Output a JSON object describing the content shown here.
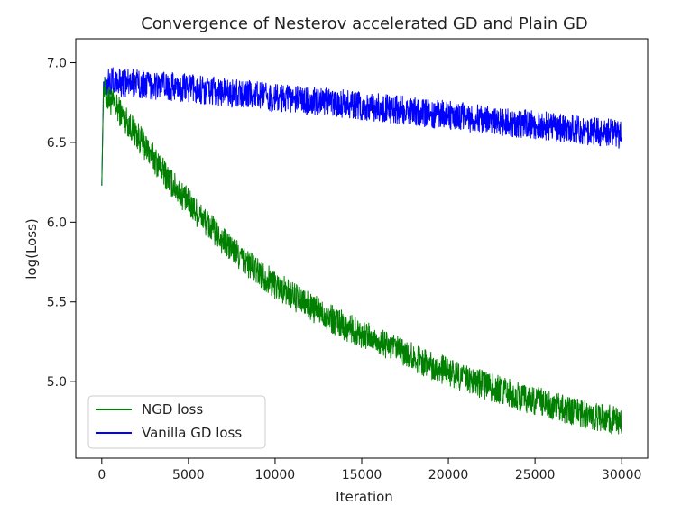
{
  "chart_data": {
    "type": "line",
    "title": "Convergence of Nesterov accelerated GD and Plain GD",
    "xlabel": "Iteration",
    "ylabel": "log(Loss)",
    "xlim": [
      -1500,
      31500
    ],
    "ylim": [
      4.52,
      7.15
    ],
    "x_ticks": [
      0,
      5000,
      10000,
      15000,
      20000,
      25000,
      30000
    ],
    "x_tick_labels": [
      "0",
      "5000",
      "10000",
      "15000",
      "20000",
      "25000",
      "30000"
    ],
    "y_ticks": [
      5.0,
      5.5,
      6.0,
      6.5,
      7.0
    ],
    "y_tick_labels": [
      "5.0",
      "5.5",
      "6.0",
      "6.5",
      "7.0"
    ],
    "grid": false,
    "legend_position": "lower-left",
    "series": [
      {
        "name": "NGD loss",
        "color": "#008000",
        "x": [
          0,
          100,
          300,
          500,
          1000,
          2000,
          3000,
          4000,
          5000,
          6000,
          7000,
          8000,
          9000,
          10000,
          12000,
          14000,
          16000,
          18000,
          20000,
          22000,
          24000,
          26000,
          28000,
          30000
        ],
        "y": [
          6.23,
          6.85,
          6.78,
          6.76,
          6.7,
          6.55,
          6.4,
          6.25,
          6.12,
          6.0,
          5.88,
          5.78,
          5.69,
          5.61,
          5.47,
          5.35,
          5.25,
          5.15,
          5.06,
          4.98,
          4.91,
          4.85,
          4.79,
          4.75
        ],
        "noise_band": 0.09
      },
      {
        "name": "Vanilla GD loss",
        "color": "#0000ff",
        "x": [
          0,
          100,
          300,
          500,
          2000,
          5000,
          10000,
          15000,
          20000,
          25000,
          30000
        ],
        "y": [
          6.23,
          6.88,
          6.88,
          6.88,
          6.87,
          6.84,
          6.78,
          6.73,
          6.67,
          6.61,
          6.55
        ],
        "noise_band": 0.09
      }
    ]
  }
}
